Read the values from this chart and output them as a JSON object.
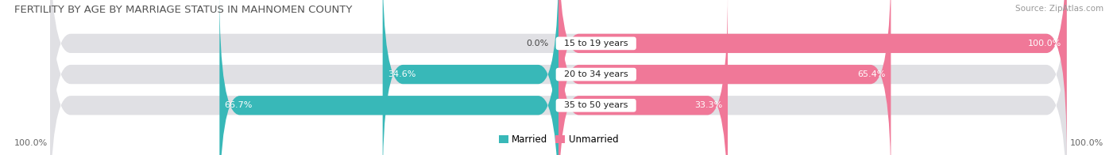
{
  "title": "FERTILITY BY AGE BY MARRIAGE STATUS IN MAHNOMEN COUNTY",
  "source": "Source: ZipAtlas.com",
  "categories": [
    "15 to 19 years",
    "20 to 34 years",
    "35 to 50 years"
  ],
  "married": [
    0.0,
    34.6,
    66.7
  ],
  "unmarried": [
    100.0,
    65.4,
    33.3
  ],
  "married_color": "#38b8b8",
  "unmarried_color": "#f07898",
  "bar_bg_color": "#e0e0e4",
  "bar_height": 0.62,
  "title_fontsize": 9.5,
  "source_fontsize": 7.5,
  "label_fontsize": 8,
  "category_fontsize": 8,
  "legend_fontsize": 8.5,
  "bg_color": "#ffffff",
  "axis_label_left": "100.0%",
  "axis_label_right": "100.0%"
}
